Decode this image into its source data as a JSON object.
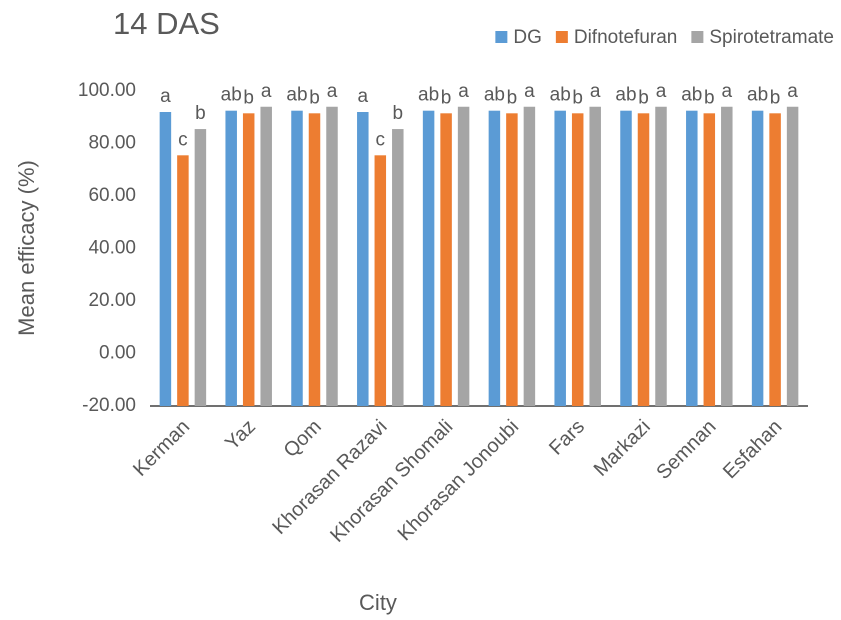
{
  "chart_data": {
    "type": "bar",
    "title": "14 DAS",
    "x_label": "City",
    "y_label": "Mean efficacy (%)",
    "categories": [
      "Kerman",
      "Yaz",
      "Qom",
      "Khorasan Razavi",
      "Khorasan Shomali",
      "Khorasan Jonoubi",
      "Fars",
      "Markazi",
      "Semnan",
      "Esfahan"
    ],
    "series": [
      {
        "name": "DG",
        "color": "#5b9bd5",
        "values": [
          92,
          92.5,
          92.5,
          92,
          92.5,
          92.5,
          92.5,
          92.5,
          92.5,
          92.5
        ],
        "letters": [
          "a",
          "ab",
          "ab",
          "a",
          "ab",
          "ab",
          "ab",
          "ab",
          "ab",
          "ab"
        ]
      },
      {
        "name": "Difnotefuran",
        "color": "#ed7d31",
        "values": [
          75.5,
          91.5,
          91.5,
          75.5,
          91.5,
          91.5,
          91.5,
          91.5,
          91.5,
          91.5
        ],
        "letters": [
          "c",
          "b",
          "b",
          "c",
          "b",
          "b",
          "b",
          "b",
          "b",
          "b"
        ]
      },
      {
        "name": "Spirotetramate",
        "color": "#a5a5a5",
        "values": [
          85.5,
          94,
          94,
          85.5,
          94,
          94,
          94,
          94,
          94,
          94
        ],
        "letters": [
          "b",
          "a",
          "a",
          "b",
          "a",
          "a",
          "a",
          "a",
          "a",
          "a"
        ]
      }
    ],
    "ylim": [
      -20,
      100
    ],
    "yticks": [
      {
        "value": -20,
        "label": "-20.00"
      },
      {
        "value": 0,
        "label": "0.00"
      },
      {
        "value": 20,
        "label": "20.00"
      },
      {
        "value": 40,
        "label": "40.00"
      },
      {
        "value": 60,
        "label": "60.00"
      },
      {
        "value": 80,
        "label": "80.00"
      },
      {
        "value": 100,
        "label": "100.00"
      }
    ],
    "legend": "top-right",
    "grid": false
  }
}
